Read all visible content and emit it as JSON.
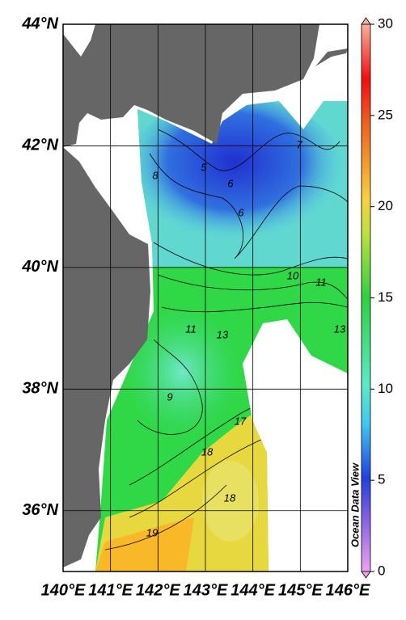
{
  "map": {
    "xlim": [
      140,
      146
    ],
    "xticks": [
      {
        "value": 140,
        "label": "140°E"
      },
      {
        "value": 141,
        "label": "141°E"
      },
      {
        "value": 142,
        "label": "142°E"
      },
      {
        "value": 143,
        "label": "143°E"
      },
      {
        "value": 144,
        "label": "144°E"
      },
      {
        "value": 145,
        "label": "145°E"
      },
      {
        "value": 146,
        "label": "146°E"
      }
    ],
    "ylim": [
      35,
      44
    ],
    "yticks": [
      {
        "value": 44,
        "label": "44°N"
      },
      {
        "value": 42,
        "label": "42°N"
      },
      {
        "value": 40,
        "label": "40°N"
      },
      {
        "value": 38,
        "label": "38°N"
      },
      {
        "value": 36,
        "label": "36°N"
      }
    ],
    "grid": true,
    "colorbar": {
      "lim": [
        0,
        30
      ],
      "ticks": [
        0,
        5,
        10,
        15,
        20,
        25,
        30
      ]
    },
    "contour_labels": [
      "5",
      "6",
      "6",
      "7",
      "8",
      "10",
      "11",
      "11",
      "13",
      "13",
      "9",
      "17",
      "18",
      "18",
      "19"
    ],
    "watermark": "Ocean Data View"
  }
}
